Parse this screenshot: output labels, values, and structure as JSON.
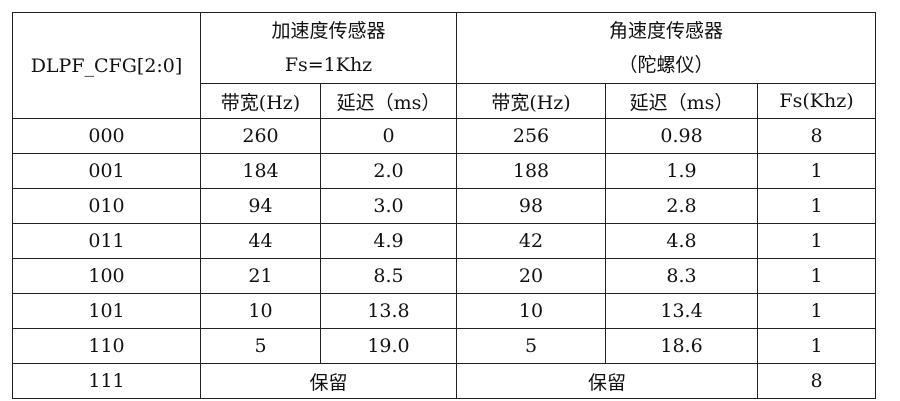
{
  "table": {
    "header": {
      "config": "DLPF_CFG[2:0]",
      "accel": [
        "加速度传感器",
        "Fs=1Khz"
      ],
      "gyro": [
        "角速度传感器",
        "（陀螺仪）"
      ],
      "sub": [
        "带宽(Hz)",
        "延迟（ms）",
        "带宽(Hz)",
        "延迟（ms）",
        "Fs(Khz)"
      ]
    },
    "rows": [
      [
        "000",
        "260",
        "0",
        "256",
        "0.98",
        "8"
      ],
      [
        "001",
        "184",
        "2.0",
        "188",
        "1.9",
        "1"
      ],
      [
        "010",
        "94",
        "3.0",
        "98",
        "2.8",
        "1"
      ],
      [
        "011",
        "44",
        "4.9",
        "42",
        "4.8",
        "1"
      ],
      [
        "100",
        "21",
        "8.5",
        "20",
        "8.3",
        "1"
      ],
      [
        "101",
        "10",
        "13.8",
        "10",
        "13.4",
        "1"
      ],
      [
        "110",
        "5",
        "19.0",
        "5",
        "18.6",
        "1"
      ],
      [
        "111",
        "保留",
        "保留",
        "8"
      ]
    ]
  }
}
